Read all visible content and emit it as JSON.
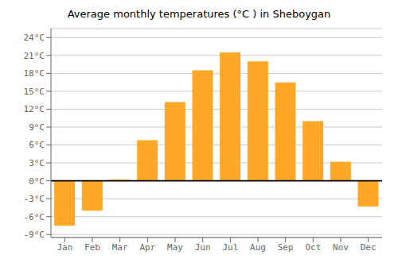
{
  "chart_data": {
    "type": "bar",
    "title": "Average monthly temperatures (°C ) in Sheboygan",
    "categories": [
      "Jan",
      "Feb",
      "Mar",
      "Apr",
      "May",
      "Jun",
      "Jul",
      "Aug",
      "Sep",
      "Oct",
      "Nov",
      "Dec"
    ],
    "values": [
      -7.5,
      -5.0,
      0.2,
      6.8,
      13.2,
      18.5,
      21.5,
      20.0,
      16.5,
      10.0,
      3.2,
      -4.3
    ],
    "color": "#FFA726",
    "ylim": [
      -9.5,
      25.5
    ],
    "yticks": [
      {
        "value": -9,
        "label": "-9°C"
      },
      {
        "value": -6,
        "label": "-6°C"
      },
      {
        "value": -3,
        "label": "-3°C"
      },
      {
        "value": 0,
        "label": "0°C"
      },
      {
        "value": 3,
        "label": "3°C"
      },
      {
        "value": 6,
        "label": "6°C"
      },
      {
        "value": 9,
        "label": "9°C"
      },
      {
        "value": 12,
        "label": "12°C"
      },
      {
        "value": 15,
        "label": "15°C"
      },
      {
        "value": 18,
        "label": "18°C"
      },
      {
        "value": 21,
        "label": "21°C"
      },
      {
        "value": 24,
        "label": "24°C"
      }
    ],
    "grid": true
  }
}
